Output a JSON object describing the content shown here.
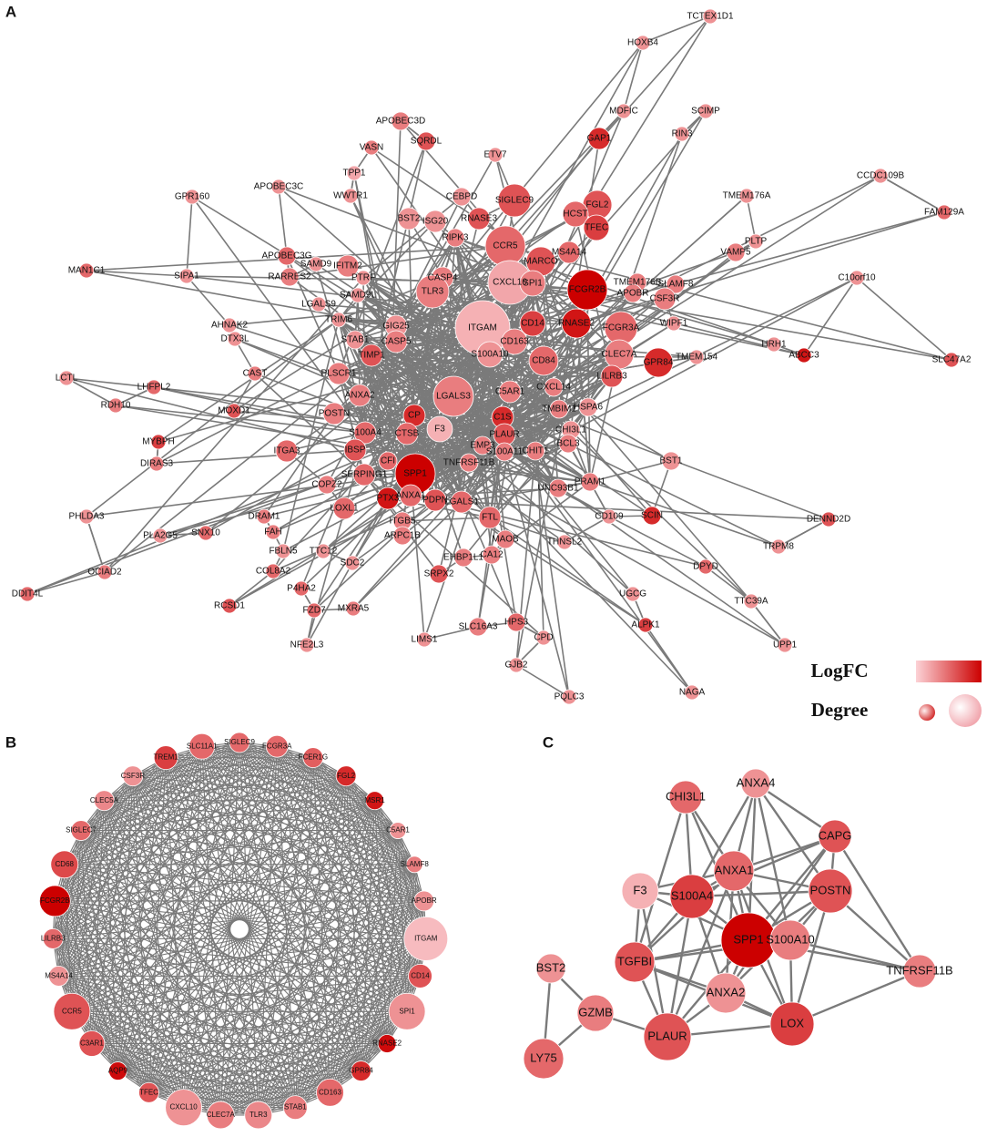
{
  "panel_a": {
    "label": "A",
    "nodes": [
      "TCTEX1D1",
      "HOXB4",
      "MDFIC",
      "SCIMP",
      "RIN3",
      "GAP1",
      "APOBEC3D",
      "SQRDL",
      "VASN",
      "ETV7",
      "TPP1",
      "APOBEC3C",
      "GPR160",
      "CCDC109B",
      "TMEM176A",
      "FAM129A",
      "SIGLEC9",
      "FGL2",
      "HCST",
      "TFEC",
      "WWTR1",
      "CEBPD",
      "BST2",
      "ISG20",
      "RNASE3",
      "CCR5",
      "MS4A14",
      "VAMP5",
      "PLTP",
      "APOBEC3G",
      "SAMD9",
      "IFITM2",
      "RIPK3",
      "MARCO",
      "PTRF",
      "TMEM176B",
      "SLAMF8",
      "C10orf10",
      "MAN1C1",
      "SIPA1",
      "RARRES2",
      "LGALS9",
      "CXCL10",
      "CASP4",
      "SPI1",
      "FCGR2B",
      "TLR3",
      "APOBR",
      "CSF3R",
      "SAMD9L",
      "TRIM6",
      "AHNAK2",
      "DTX3L",
      "ITGAM",
      "CD14",
      "RNASE2",
      "FCGR3A",
      "WIPF1",
      "HRH1",
      "ABCC3",
      "SLC47A2",
      "GIG25",
      "CASP5",
      "STAB1",
      "S100A10",
      "CD163",
      "CLEC7A",
      "TMEM154",
      "GPR84",
      "LCTL",
      "LHFPL2",
      "RDH10",
      "CAST",
      "PLSCR1",
      "TIMP1",
      "CD84",
      "LILRB3",
      "CXCL14",
      "ANXA2",
      "LGALS3",
      "C5AR1",
      "MOXD1",
      "POSTN",
      "HSPA6",
      "CP",
      "C1S",
      "F3",
      "PLAUR",
      "S100A4",
      "CTSB",
      "TMBIM1",
      "CHI3L1",
      "MYBPH",
      "ITGA3",
      "IBSP",
      "EMP3",
      "S100A11",
      "CHIT1",
      "BCL3",
      "DIRAS3",
      "BST1",
      "SPP1",
      "CFI",
      "SERPING1",
      "PRAM1",
      "TNFRSF11B",
      "COPZ2",
      "PTX3",
      "ANXA1",
      "PDPN",
      "LGALS1",
      "FTL",
      "UNC93B1",
      "LOXL1",
      "DRAM1",
      "PHLDA3",
      "SCIN",
      "DENND2D",
      "CD109",
      "FAH",
      "PLA2G5",
      "SNX10",
      "ITGB5",
      "ARPC1B",
      "MAOB",
      "EHBP1L1",
      "CA12",
      "THNSL2",
      "TRPM8",
      "DPYD",
      "FBLN5",
      "TTC12",
      "SDC2",
      "COL8A2",
      "SRPX2",
      "UGCG",
      "TTC39A",
      "OCIAD2",
      "DDIT4L",
      "P4HA2",
      "RCSD1",
      "FZD7",
      "MXRA5",
      "ALPK1",
      "UPP1",
      "SLC16A3",
      "HPS3",
      "CPD",
      "LIMS1",
      "NFE2L3",
      "GJB2",
      "NAGA",
      "PQLC3"
    ]
  },
  "legend": {
    "logfc": "LogFC",
    "degree": "Degree"
  },
  "panel_b": {
    "label": "B",
    "nodes": [
      "SIGLEC9",
      "FCGR3A",
      "FCER1G",
      "FGL2",
      "MSR1",
      "C5AR1",
      "SLAMF8",
      "APOBR",
      "ITGAM",
      "CD14",
      "SPI1",
      "RNASE2",
      "GPR84",
      "CD163",
      "STAB1",
      "TLR3",
      "CLEC7A",
      "CXCL10",
      "TFEC",
      "AQP9",
      "C3AR1",
      "CCR5",
      "MS4A14",
      "LILRB3",
      "FCGR2B",
      "CD68",
      "SIGLEC7",
      "CLEC5A",
      "CSF3R",
      "TREM1",
      "SLC11A1"
    ]
  },
  "panel_c": {
    "label": "C",
    "nodes": [
      "CHI3L1",
      "ANXA4",
      "CAPG",
      "ANXA1",
      "F3",
      "S100A4",
      "POSTN",
      "SPP1",
      "S100A10",
      "TNFRSF11B",
      "BST2",
      "TGFBI",
      "ANXA2",
      "GZMB",
      "LOX",
      "PLAUR",
      "LY75"
    ]
  }
}
